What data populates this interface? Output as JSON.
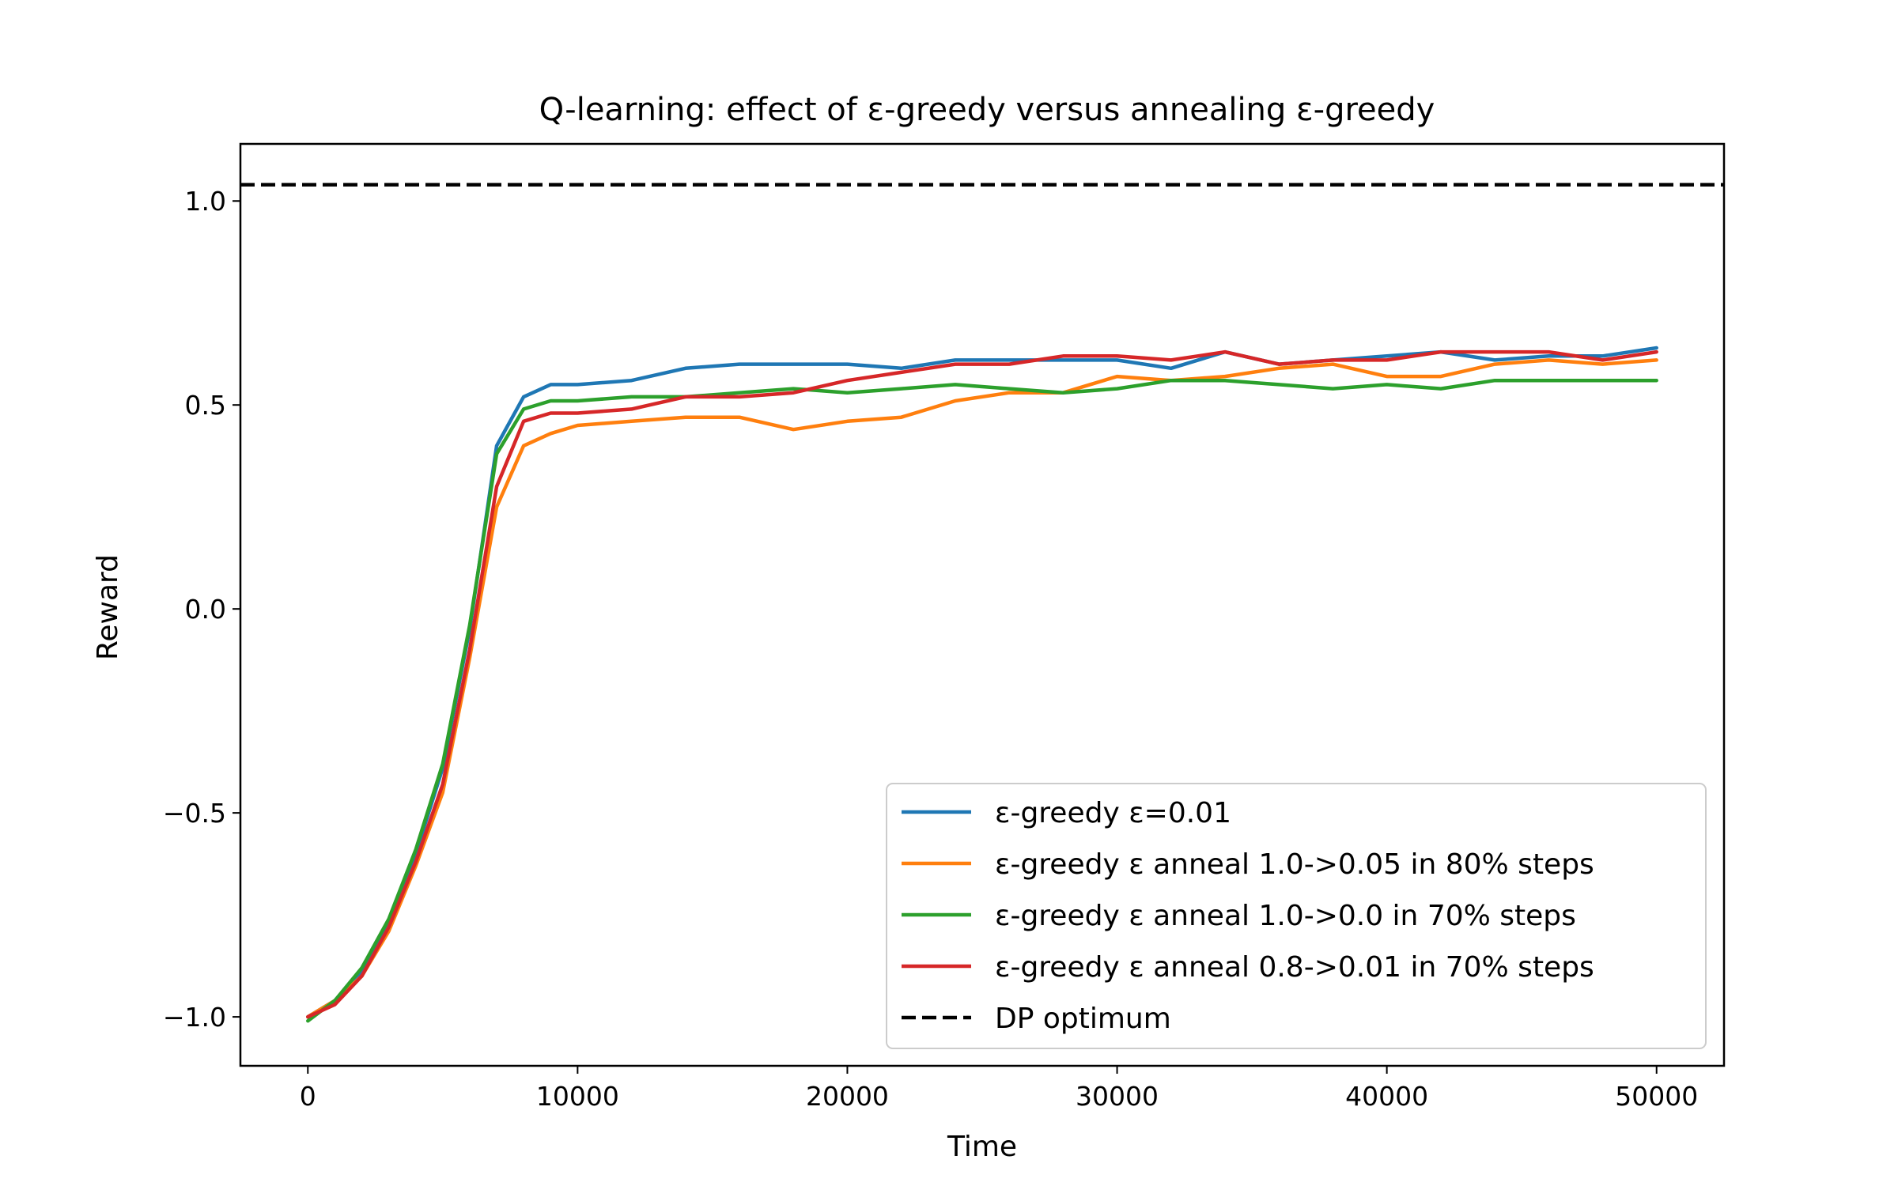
{
  "chart_data": {
    "type": "line",
    "title": "Q-learning: effect of ε-greedy versus annealing ε-greedy",
    "xlabel": "Time",
    "ylabel": "Reward",
    "xlim": [
      -2500,
      52500
    ],
    "ylim": [
      -1.12,
      1.14
    ],
    "xticks": [
      0,
      10000,
      20000,
      30000,
      40000,
      50000
    ],
    "xtick_labels": [
      "0",
      "10000",
      "20000",
      "30000",
      "40000",
      "50000"
    ],
    "yticks": [
      -1.0,
      -0.5,
      0.0,
      0.5,
      1.0
    ],
    "ytick_labels": [
      "−1.0",
      "−0.5",
      "0.0",
      "0.5",
      "1.0"
    ],
    "grid": false,
    "legend_position": "lower-right",
    "x": [
      0,
      1000,
      2000,
      3000,
      4000,
      5000,
      6000,
      7000,
      8000,
      9000,
      10000,
      12000,
      14000,
      16000,
      18000,
      20000,
      22000,
      24000,
      26000,
      28000,
      30000,
      32000,
      34000,
      36000,
      38000,
      40000,
      42000,
      44000,
      46000,
      48000,
      50000
    ],
    "series": [
      {
        "name": "ε-greedy ε=0.01",
        "color": "#1f77b4",
        "style": "solid",
        "values": [
          -1.0,
          -0.96,
          -0.89,
          -0.77,
          -0.6,
          -0.39,
          -0.05,
          0.4,
          0.52,
          0.55,
          0.55,
          0.56,
          0.59,
          0.6,
          0.6,
          0.6,
          0.59,
          0.61,
          0.61,
          0.61,
          0.61,
          0.59,
          0.63,
          0.6,
          0.61,
          0.62,
          0.63,
          0.61,
          0.62,
          0.62,
          0.64
        ]
      },
      {
        "name": "ε-greedy ε anneal 1.0->0.05 in 80% steps",
        "color": "#ff7f0e",
        "style": "solid",
        "values": [
          -1.0,
          -0.96,
          -0.9,
          -0.79,
          -0.63,
          -0.45,
          -0.12,
          0.25,
          0.4,
          0.43,
          0.45,
          0.46,
          0.47,
          0.47,
          0.44,
          0.46,
          0.47,
          0.51,
          0.53,
          0.53,
          0.57,
          0.56,
          0.57,
          0.59,
          0.6,
          0.57,
          0.57,
          0.6,
          0.61,
          0.6,
          0.61
        ]
      },
      {
        "name": "ε-greedy ε anneal 1.0->0.0 in 70% steps",
        "color": "#2ca02c",
        "style": "solid",
        "values": [
          -1.01,
          -0.96,
          -0.88,
          -0.76,
          -0.59,
          -0.38,
          -0.04,
          0.38,
          0.49,
          0.51,
          0.51,
          0.52,
          0.52,
          0.53,
          0.54,
          0.53,
          0.54,
          0.55,
          0.54,
          0.53,
          0.54,
          0.56,
          0.56,
          0.55,
          0.54,
          0.55,
          0.54,
          0.56,
          0.56,
          0.56,
          0.56
        ]
      },
      {
        "name": "ε-greedy ε anneal 0.8->0.01 in 70% steps",
        "color": "#d62728",
        "style": "solid",
        "values": [
          -1.0,
          -0.97,
          -0.9,
          -0.78,
          -0.62,
          -0.43,
          -0.1,
          0.3,
          0.46,
          0.48,
          0.48,
          0.49,
          0.52,
          0.52,
          0.53,
          0.56,
          0.58,
          0.6,
          0.6,
          0.62,
          0.62,
          0.61,
          0.63,
          0.6,
          0.61,
          0.61,
          0.63,
          0.63,
          0.63,
          0.61,
          0.63
        ]
      },
      {
        "name": "DP optimum",
        "color": "#000000",
        "style": "dashed",
        "constant": 1.04
      }
    ]
  }
}
